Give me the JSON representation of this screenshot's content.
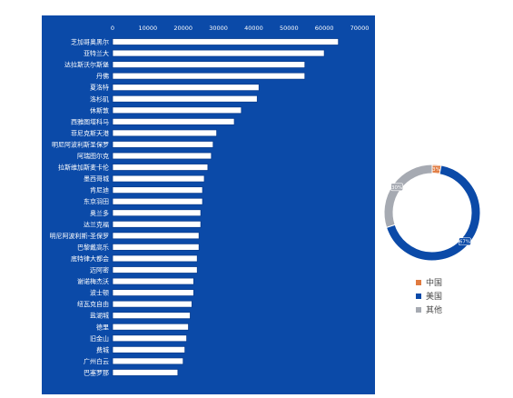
{
  "chart_data": [
    {
      "type": "bar",
      "orientation": "horizontal",
      "colors": {
        "background": "#0b4aa8",
        "bar_fill": "#ffffff",
        "bar_stroke": "#0a3d8f",
        "text": "#ffffff"
      },
      "xlim": [
        0,
        70000
      ],
      "xticks": [
        "0",
        "10000",
        "20000",
        "30000",
        "40000",
        "50000",
        "60000",
        "70000"
      ],
      "categories": [
        "芝加哥奥黑尔",
        "亚特兰大",
        "达拉斯沃尔斯堡",
        "丹佛",
        "夏洛特",
        "洛杉矶",
        "休斯敦",
        "西雅图塔科马",
        "菲尼克斯天港",
        "明尼阿波利斯圣保罗",
        "阿瑞图尔克",
        "拉斯维加斯麦卡伦",
        "墨西哥城",
        "肯尼迪",
        "东京羽田",
        "奥兰多",
        "达兰克福",
        "明尼阿波利斯-圣保罗",
        "巴黎戴高乐",
        "底特律大都会",
        "迈阿密",
        "谢诺梅杰沃",
        "波士顿",
        "纽瓦克自由",
        "盐湖城",
        "德里",
        "旧金山",
        "费城",
        "广州白云",
        "巴塞罗那"
      ],
      "values": [
        64000,
        60000,
        54500,
        54500,
        41500,
        41000,
        36500,
        34500,
        29500,
        28500,
        28000,
        27000,
        26000,
        25500,
        25500,
        25000,
        25000,
        24500,
        24500,
        24000,
        24000,
        23000,
        23000,
        22500,
        22000,
        21500,
        21000,
        20500,
        20000,
        18500
      ]
    },
    {
      "type": "pie",
      "variant": "donut",
      "categories": [
        "中国",
        "美国",
        "其他"
      ],
      "values": [
        3,
        67,
        30
      ],
      "labels": [
        "3%",
        "67%",
        "30%"
      ],
      "colors": [
        "#e07a3f",
        "#0b4aa8",
        "#a6aab2"
      ]
    }
  ]
}
